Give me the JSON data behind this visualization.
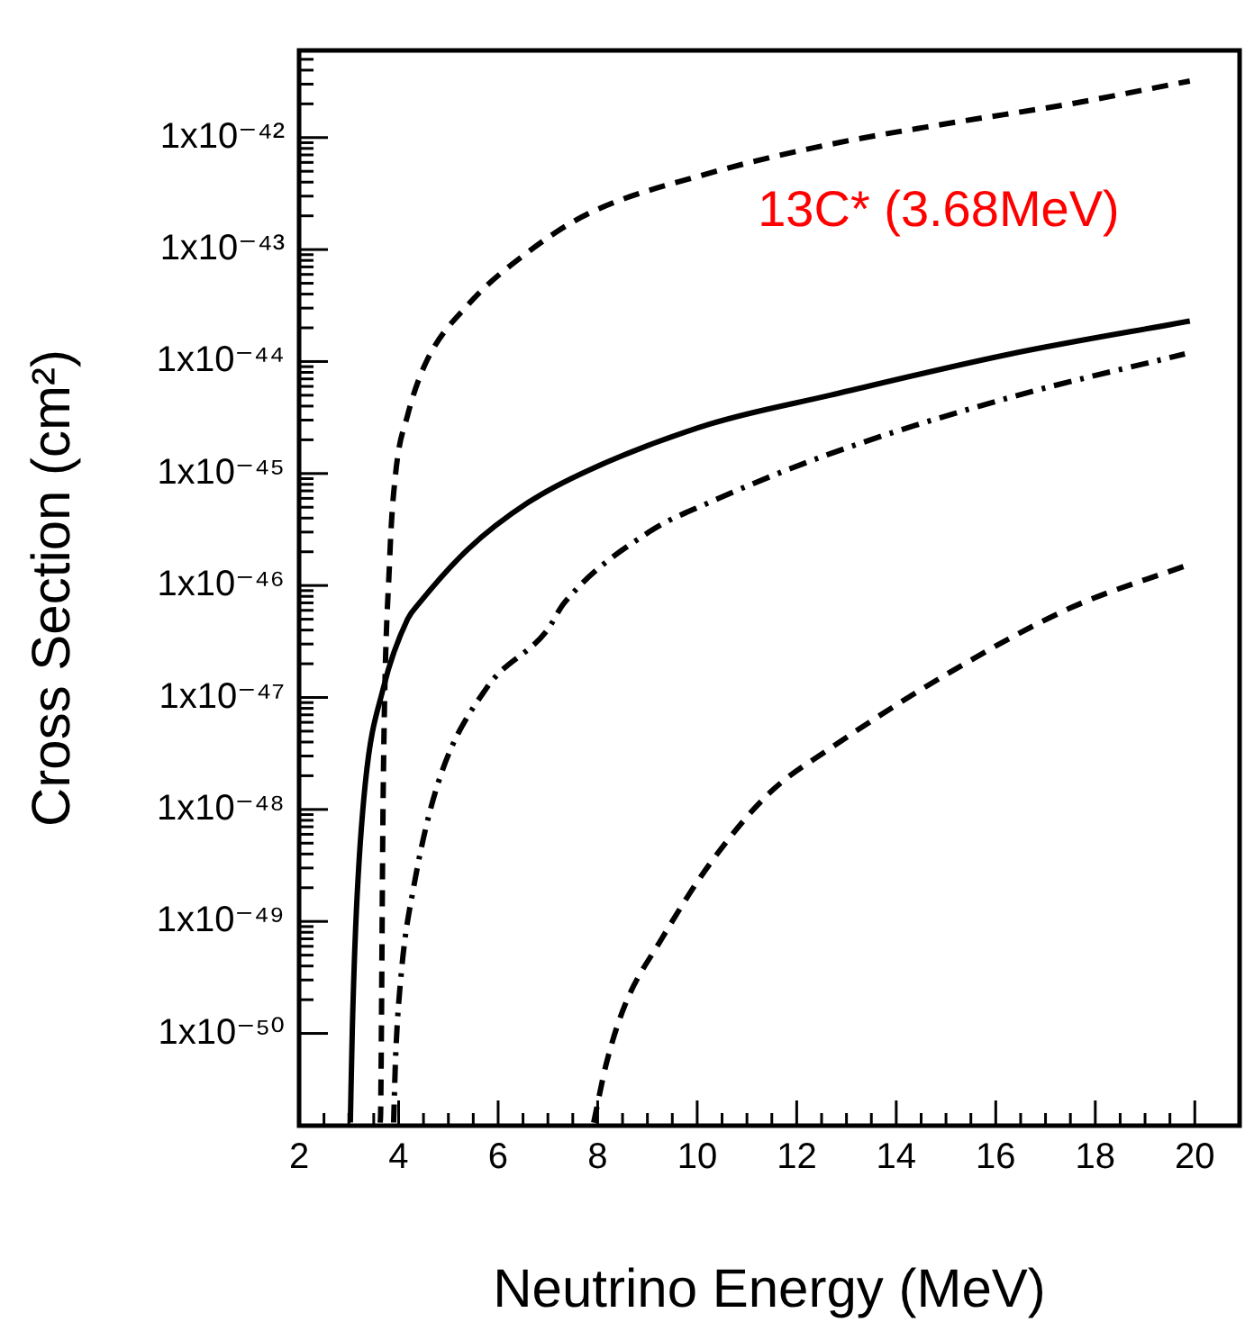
{
  "chart_data": {
    "type": "line",
    "xlabel": "Neutrino Energy (MeV)",
    "ylabel": "Cross Section (cm²)",
    "log": "y",
    "grid": false,
    "legend": false,
    "marker": "none",
    "xlim": [
      2,
      20.9
    ],
    "xticks": [
      2,
      4,
      6,
      8,
      10,
      12,
      14,
      16,
      18,
      20
    ],
    "ylim": [
      1.5e-51,
      6e-42
    ],
    "yticks": [
      {
        "value": 1e-50,
        "label": "1x10⁻⁵⁰"
      },
      {
        "value": 1e-49,
        "label": "1x10⁻⁴⁹"
      },
      {
        "value": 1e-48,
        "label": "1x10⁻⁴⁸"
      },
      {
        "value": 1e-47,
        "label": "1x10⁻⁴⁷"
      },
      {
        "value": 1e-46,
        "label": "1x10⁻⁴⁶"
      },
      {
        "value": 1e-45,
        "label": "1x10⁻⁴⁵"
      },
      {
        "value": 1e-44,
        "label": "1x10⁻⁴⁴"
      },
      {
        "value": 1e-43,
        "label": "1x10⁻⁴³"
      },
      {
        "value": 1e-42,
        "label": "1x10⁻⁴²"
      }
    ],
    "annotations": [
      "13C* (3.68MeV)"
    ],
    "series": [
      {
        "color": "#000000",
        "line_style": "dashed",
        "x": [
          3.63,
          3.64,
          3.69,
          3.82,
          3.94,
          4.18,
          4.55,
          5.39,
          6.6,
          7.82,
          10.24,
          12.67,
          15.1,
          17.5,
          19.9
        ],
        "values": [
          1.6e-51,
          2.1e-51,
          1.4e-48,
          1.7e-46,
          1e-45,
          3.3e-45,
          9.8e-45,
          3.2e-44,
          9.5e-44,
          2.1e-43,
          4.8e-43,
          8.7e-43,
          1.35e-42,
          2e-42,
          3.2e-42
        ]
      },
      {
        "color": "#000000",
        "line_style": "solid",
        "x": [
          3.03,
          3.07,
          3.15,
          3.33,
          3.69,
          4.18,
          4.42,
          5.39,
          6.6,
          7.82,
          10.24,
          12.67,
          16.3,
          19.9
        ],
        "values": [
          1.6e-51,
          1.1e-50,
          1.2e-49,
          1.7e-48,
          1.2e-47,
          5e-47,
          7e-47,
          2.1e-46,
          5.5e-46,
          1.07e-45,
          2.75e-45,
          5e-45,
          1.17e-44,
          2.3e-44
        ]
      },
      {
        "color": "#000000",
        "line_style": "dashdot",
        "x": [
          3.9,
          3.91,
          3.94,
          4.06,
          4.3,
          4.79,
          5.76,
          6.97,
          7.33,
          9.03,
          10.24,
          12.67,
          16.3,
          19.8
        ],
        "values": [
          1.6e-51,
          2.3e-51,
          6.2e-51,
          3.7e-50,
          2e-49,
          1.7e-48,
          1.2e-47,
          3.9e-47,
          7e-47,
          3e-46,
          5.5e-46,
          1.5e-45,
          4.8e-45,
          1.17e-44
        ]
      },
      {
        "color": "#000000",
        "line_style": "dashed",
        "x": [
          7.92,
          8.18,
          8.55,
          9.27,
          10.24,
          11.45,
          12.67,
          15.1,
          17.5,
          19.9
        ],
        "values": [
          1.6e-51,
          5.5e-51,
          1.8e-50,
          6.8e-50,
          3.2e-49,
          1.4e-48,
          3.5e-48,
          1.7e-47,
          6.3e-47,
          1.55e-46
        ]
      }
    ]
  }
}
